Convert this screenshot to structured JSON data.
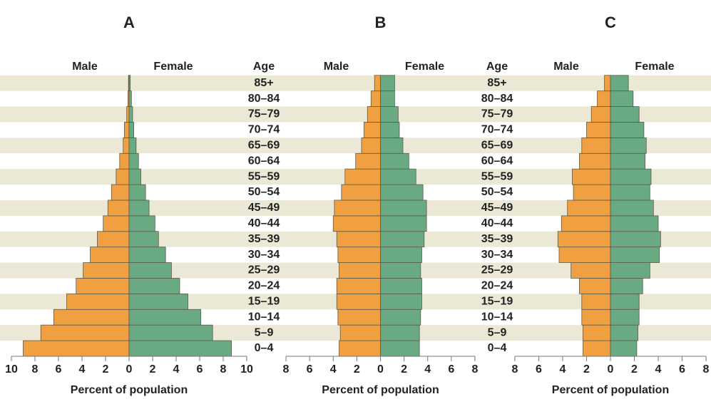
{
  "chart_data": [
    {
      "type": "pyramid",
      "title": "A",
      "y_label": "Age",
      "x_label": "Percent of population",
      "categories": [
        "0–4",
        "5–9",
        "10–14",
        "15–19",
        "20–24",
        "25–29",
        "30–34",
        "35–39",
        "40–44",
        "45–49",
        "50–54",
        "55–59",
        "60–64",
        "65–69",
        "70–74",
        "75–79",
        "80–84",
        "85+"
      ],
      "series": [
        {
          "name": "Male",
          "color": "#f0a040",
          "values": [
            9.0,
            7.5,
            6.4,
            5.3,
            4.5,
            3.9,
            3.3,
            2.7,
            2.2,
            1.8,
            1.5,
            1.1,
            0.8,
            0.5,
            0.4,
            0.2,
            0.1,
            0.05
          ]
        },
        {
          "name": "Female",
          "color": "#6aaa82",
          "values": [
            8.7,
            7.1,
            6.1,
            5.0,
            4.3,
            3.6,
            3.1,
            2.5,
            2.2,
            1.7,
            1.4,
            1.0,
            0.8,
            0.6,
            0.4,
            0.3,
            0.2,
            0.1
          ]
        }
      ],
      "xlim": [
        -10,
        10
      ],
      "xticks": [
        {
          "value": -10,
          "label": "10"
        },
        {
          "value": -8,
          "label": "8"
        },
        {
          "value": -6,
          "label": "6"
        },
        {
          "value": -4,
          "label": "4"
        },
        {
          "value": -2,
          "label": "2"
        },
        0,
        2,
        4,
        6,
        8,
        10
      ]
    },
    {
      "type": "pyramid",
      "title": "B",
      "y_label": "Age",
      "x_label": "Percent of population",
      "categories": [
        "0–4",
        "5–9",
        "10–14",
        "15–19",
        "20–24",
        "25–29",
        "30–34",
        "35–39",
        "40–44",
        "45–49",
        "50–54",
        "55–59",
        "60–64",
        "65–69",
        "70–74",
        "75–79",
        "80–84",
        "85+"
      ],
      "series": [
        {
          "name": "Male",
          "color": "#f0a040",
          "values": [
            3.5,
            3.4,
            3.6,
            3.7,
            3.7,
            3.5,
            3.6,
            3.7,
            4.0,
            3.9,
            3.3,
            3.0,
            2.1,
            1.6,
            1.4,
            1.1,
            0.8,
            0.5
          ]
        },
        {
          "name": "Female",
          "color": "#6aaa82",
          "values": [
            3.3,
            3.3,
            3.4,
            3.5,
            3.5,
            3.4,
            3.5,
            3.7,
            3.9,
            3.9,
            3.6,
            3.0,
            2.4,
            1.9,
            1.6,
            1.5,
            1.2,
            1.2
          ]
        }
      ],
      "xlim": [
        -8,
        8
      ],
      "xticks": [
        {
          "value": -8,
          "label": "8"
        },
        {
          "value": -6,
          "label": "6"
        },
        {
          "value": -4,
          "label": "4"
        },
        {
          "value": -2,
          "label": "2"
        },
        0,
        2,
        4,
        6,
        8
      ]
    },
    {
      "type": "pyramid",
      "title": "C",
      "x_label": "Percent of population",
      "categories": [
        "0–4",
        "5–9",
        "10–14",
        "15–19",
        "20–24",
        "25–29",
        "30–34",
        "35–39",
        "40–44",
        "45–49",
        "50–54",
        "55–59",
        "60–64",
        "65–69",
        "70–74",
        "75–79",
        "80–84",
        "85+"
      ],
      "series": [
        {
          "name": "Male",
          "color": "#f0a040",
          "values": [
            2.3,
            2.3,
            2.4,
            2.4,
            2.6,
            3.3,
            4.3,
            4.4,
            4.1,
            3.6,
            3.1,
            3.2,
            2.6,
            2.4,
            2.0,
            1.6,
            1.1,
            0.5
          ]
        },
        {
          "name": "Female",
          "color": "#6aaa82",
          "values": [
            2.2,
            2.3,
            2.4,
            2.4,
            2.7,
            3.3,
            4.1,
            4.2,
            4.0,
            3.6,
            3.3,
            3.4,
            2.9,
            3.0,
            2.8,
            2.4,
            1.9,
            1.5
          ]
        }
      ],
      "xlim": [
        -8,
        8
      ],
      "xticks": [
        {
          "value": -8,
          "label": "8"
        },
        {
          "value": -6,
          "label": "6"
        },
        {
          "value": -4,
          "label": "4"
        },
        {
          "value": -2,
          "label": "2"
        },
        0,
        2,
        4,
        6,
        8
      ]
    }
  ]
}
